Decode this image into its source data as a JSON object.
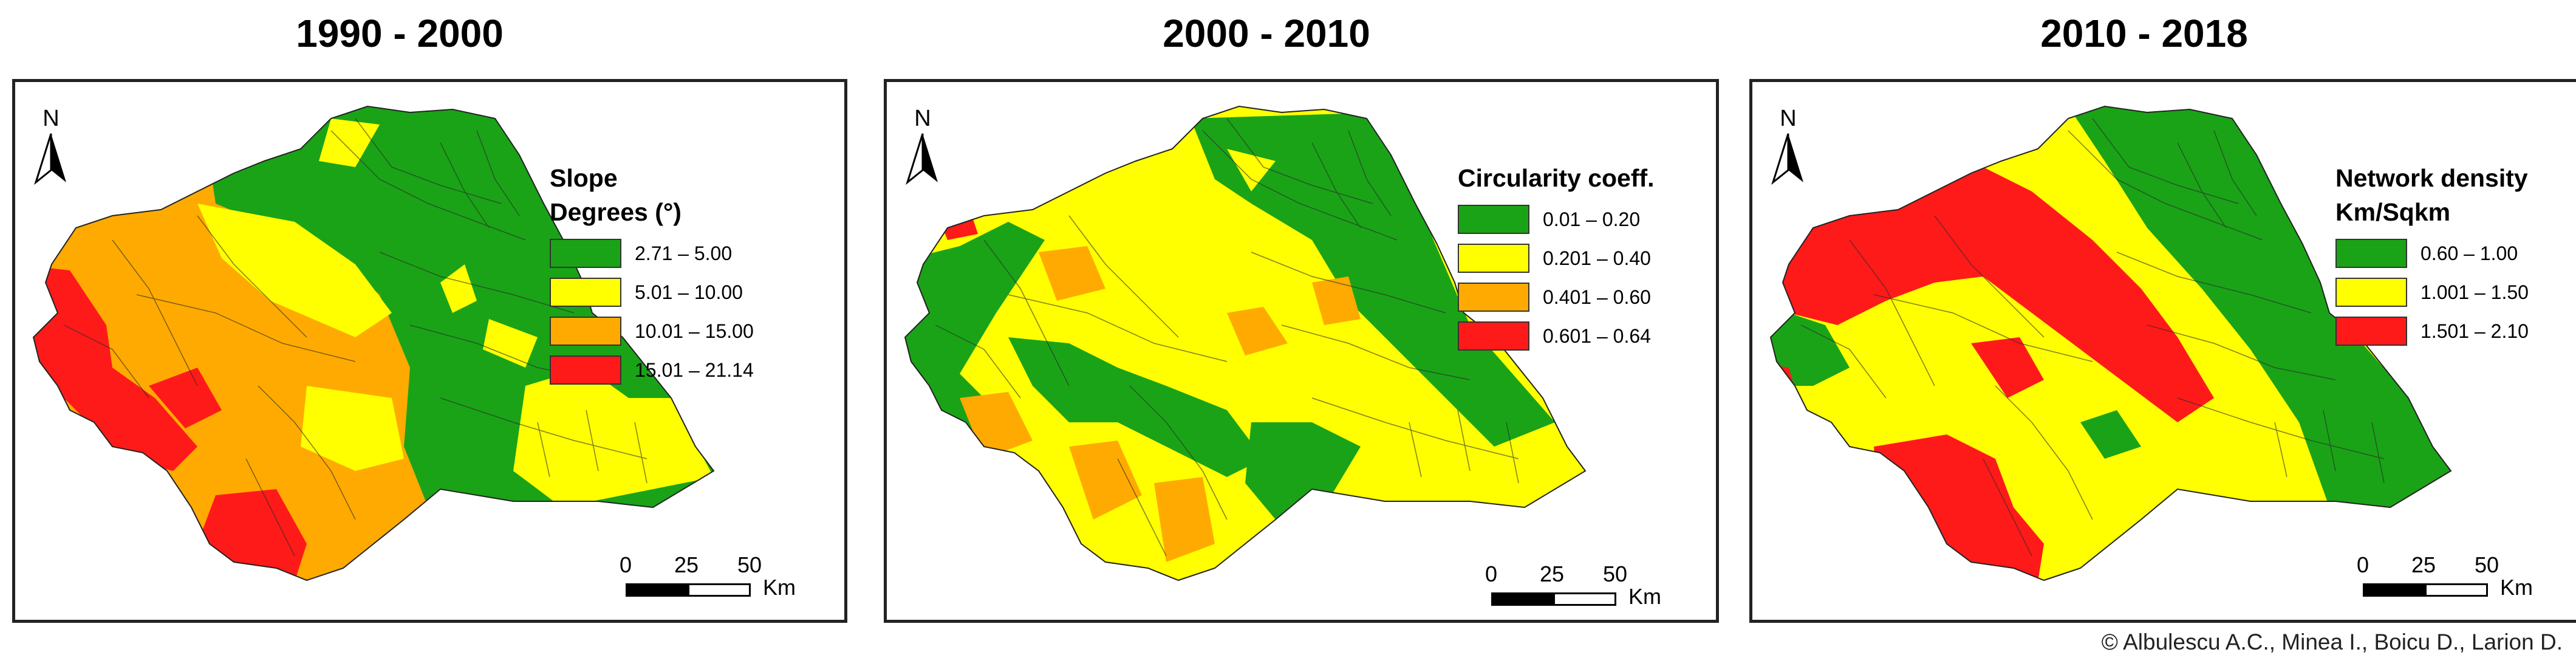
{
  "panels": [
    {
      "title": "1990 - 2000",
      "north": "N",
      "legend_title": "Slope",
      "legend_subtitle": "Degrees (°)",
      "classes": [
        {
          "label": "2.71 – 5.00",
          "color": "#1aa317"
        },
        {
          "label": "5.01 – 10.00",
          "color": "#ffff00"
        },
        {
          "label": "10.01 – 15.00",
          "color": "#ffaa00"
        },
        {
          "label": "15.01 – 21.14",
          "color": "#ff1a1a"
        }
      ],
      "scale": {
        "ticks": [
          "0",
          "25",
          "50"
        ],
        "unit": "Km"
      }
    },
    {
      "title": "2000 - 2010",
      "north": "N",
      "legend_title": "Circularity coeff.",
      "legend_subtitle": "",
      "classes": [
        {
          "label": "0.01 – 0.20",
          "color": "#1aa317"
        },
        {
          "label": "0.201 – 0.40",
          "color": "#ffff00"
        },
        {
          "label": "0.401 – 0.60",
          "color": "#ffaa00"
        },
        {
          "label": "0.601 – 0.64",
          "color": "#ff1a1a"
        }
      ],
      "scale": {
        "ticks": [
          "0",
          "25",
          "50"
        ],
        "unit": "Km"
      }
    },
    {
      "title": "2010 - 2018",
      "north": "N",
      "legend_title": "Network density",
      "legend_subtitle": "Km/Sqkm",
      "classes": [
        {
          "label": "0.60 – 1.00",
          "color": "#1aa317"
        },
        {
          "label": "1.001 – 1.50",
          "color": "#ffff00"
        },
        {
          "label": "1.501 – 2.10",
          "color": "#ff1a1a"
        }
      ],
      "scale": {
        "ticks": [
          "0",
          "25",
          "50"
        ],
        "unit": "Km"
      }
    }
  ],
  "credit": "© Albulescu A.C., Minea I., Boicu D., Larion D."
}
